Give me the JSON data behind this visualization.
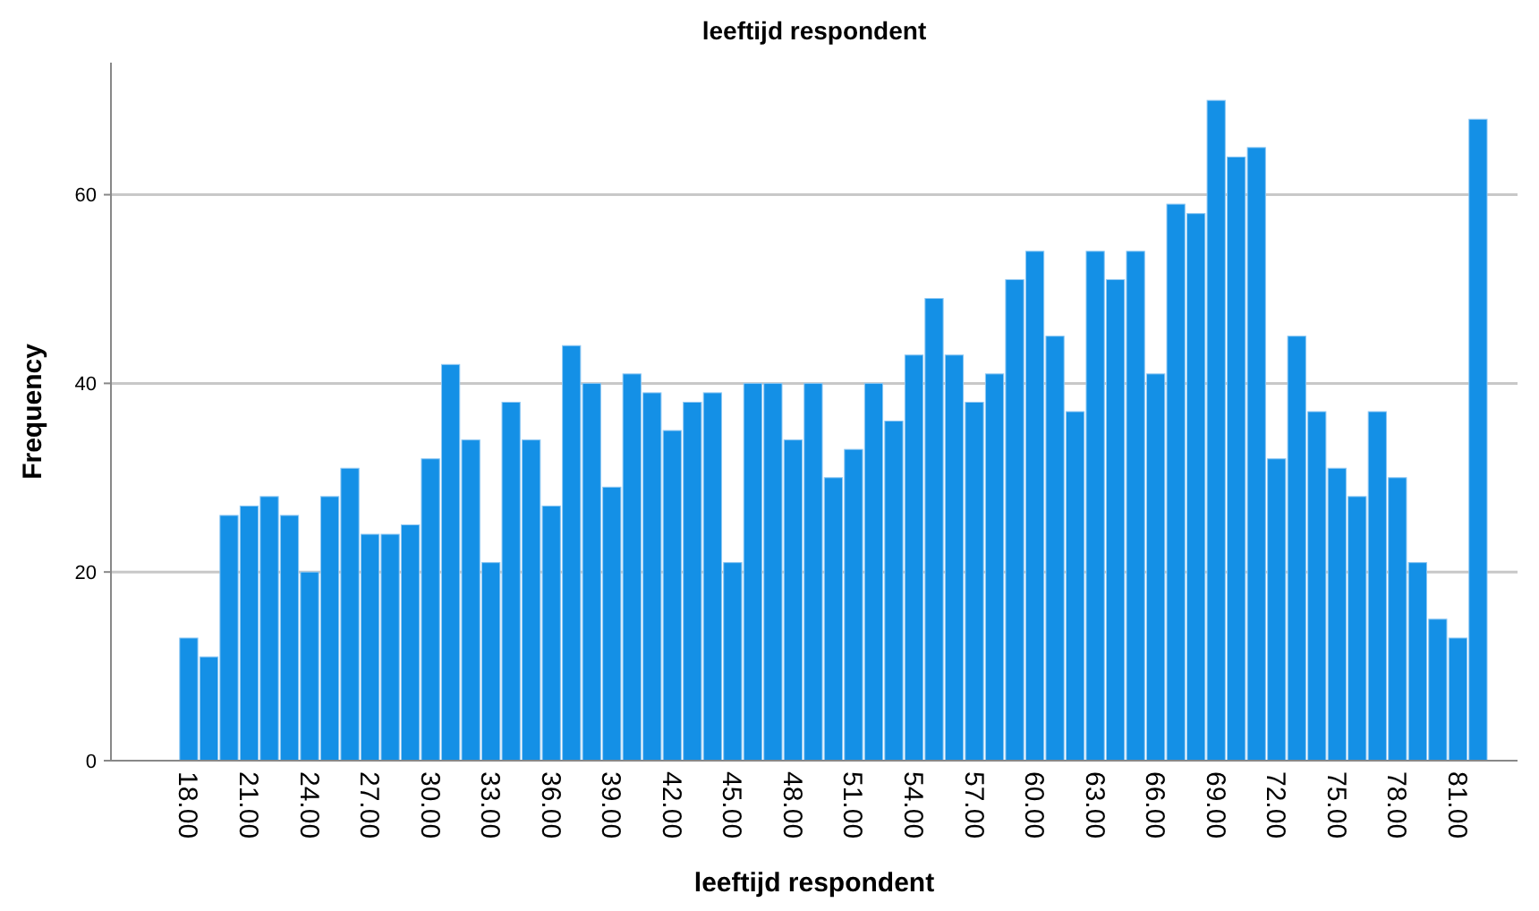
{
  "chart_data": {
    "type": "bar",
    "title": "leeftijd respondent",
    "xlabel": "leeftijd respondent",
    "ylabel": "Frequency",
    "categories": [
      "18.00",
      null,
      null,
      "21.00",
      null,
      null,
      "24.00",
      null,
      null,
      "27.00",
      null,
      null,
      "30.00",
      null,
      null,
      "33.00",
      null,
      null,
      "36.00",
      null,
      null,
      "39.00",
      null,
      null,
      "42.00",
      null,
      null,
      "45.00",
      null,
      null,
      "48.00",
      null,
      null,
      "51.00",
      null,
      null,
      "54.00",
      null,
      null,
      "57.00",
      null,
      null,
      "60.00",
      null,
      null,
      "63.00",
      null,
      null,
      "66.00",
      null,
      null,
      "69.00",
      null,
      null,
      "72.00",
      null,
      null,
      "75.00",
      null,
      null,
      "78.00",
      null,
      null,
      "81.00",
      null
    ],
    "values": [
      13,
      11,
      26,
      27,
      28,
      26,
      20,
      28,
      31,
      24,
      24,
      25,
      32,
      42,
      34,
      21,
      38,
      34,
      27,
      44,
      40,
      29,
      41,
      39,
      35,
      38,
      39,
      21,
      40,
      40,
      34,
      40,
      30,
      33,
      40,
      36,
      43,
      49,
      43,
      38,
      41,
      51,
      54,
      45,
      37,
      54,
      51,
      54,
      41,
      59,
      58,
      70,
      64,
      65,
      32,
      45,
      37,
      31,
      28,
      37,
      30,
      21,
      15,
      13,
      68
    ],
    "color": "#1490e6",
    "ylim": [
      0,
      74
    ],
    "yticks": [
      0,
      20,
      40,
      60
    ],
    "grid": "y"
  }
}
